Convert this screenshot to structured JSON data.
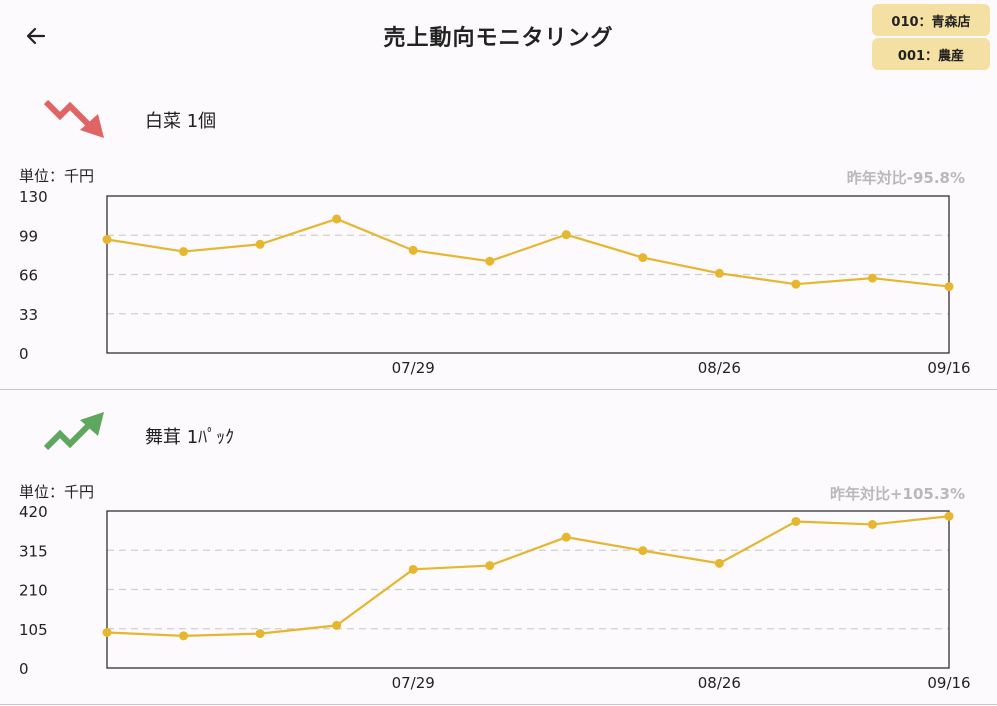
{
  "header": {
    "title": "売上動向モニタリング",
    "store_badge": "010：青森店",
    "dept_badge": "001：農産"
  },
  "items": [
    {
      "name": "白菜 1個",
      "unit": "単位：千円",
      "yoy": "昨年対比-95.8%",
      "trend": "down",
      "trend_color": "#e06464",
      "chart_data": {
        "type": "line",
        "ylim": [
          0,
          130
        ],
        "yticks": [
          "130",
          "99",
          "66",
          "33",
          "0"
        ],
        "xtick_labels": [
          "07/29",
          "08/26",
          "09/16"
        ],
        "values": [
          94,
          84,
          90,
          111,
          85,
          76,
          98,
          79,
          66,
          57,
          62,
          55
        ],
        "line_color": "#e6b62e",
        "grid": true
      }
    },
    {
      "name": "舞茸 1ﾊﾟｯｸ",
      "unit": "単位：千円",
      "yoy": "昨年対比+105.3%",
      "trend": "up",
      "trend_color": "#5fa75f",
      "chart_data": {
        "type": "line",
        "ylim": [
          0,
          420
        ],
        "yticks": [
          "420",
          "315",
          "210",
          "105",
          "0"
        ],
        "xtick_labels": [
          "07/29",
          "08/26",
          "09/16"
        ],
        "values": [
          95,
          86,
          92,
          114,
          264,
          274,
          350,
          314,
          280,
          392,
          384,
          406
        ],
        "line_color": "#e6b62e",
        "grid": true
      }
    }
  ]
}
